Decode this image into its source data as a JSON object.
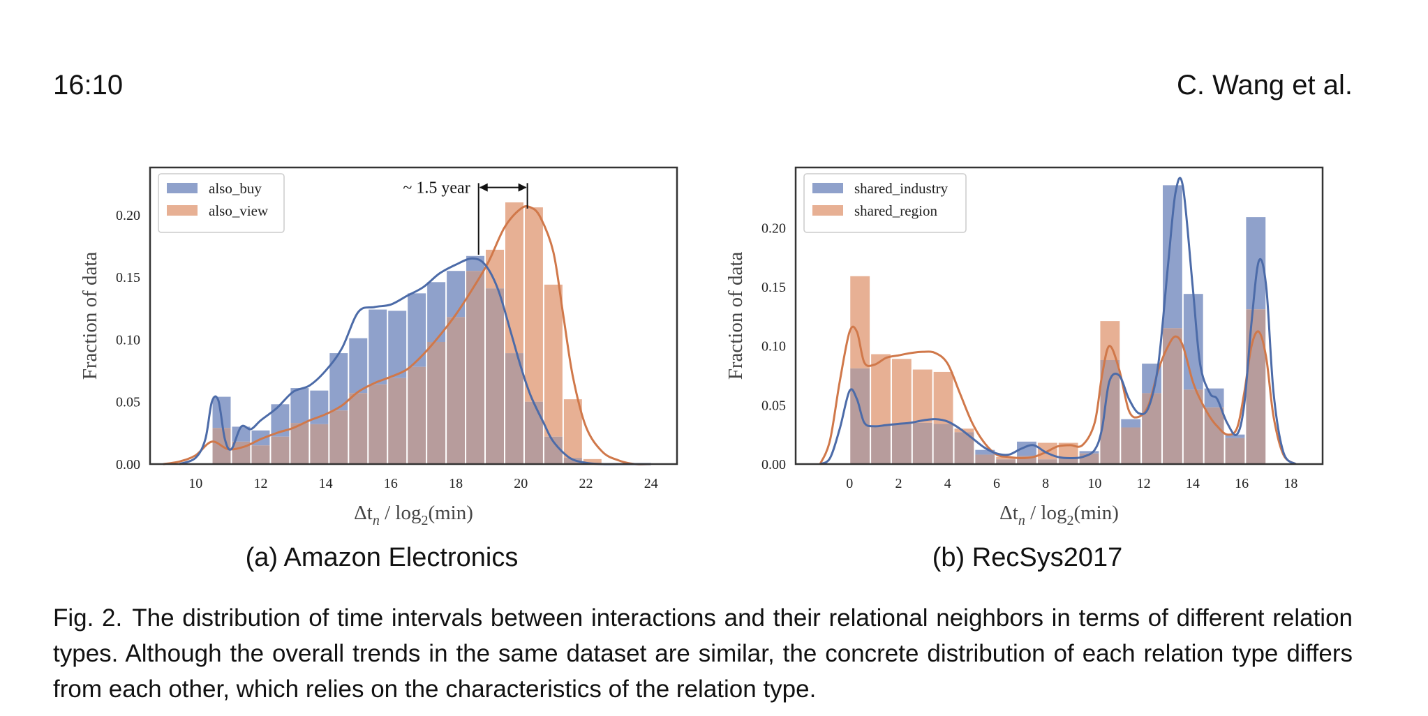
{
  "header": {
    "page_number": "16:10",
    "running_head": "C. Wang et al."
  },
  "caption": {
    "label": "Fig. 2.",
    "text": "The distribution of time intervals between interactions and their relational neighbors in terms of different relation types. Although the overall trends in the same dataset are similar, the concrete distribution of each relation type differs from each other, which relies on the characteristics of the relation type."
  },
  "colors": {
    "blue_bar": "#8fa1cb",
    "orange_bar": "#e7b094",
    "blue_line": "#4c6ba8",
    "orange_line": "#d0784a",
    "overlap": "#b79c9c"
  },
  "chart_data": [
    {
      "type": "bar",
      "subcaption": "(a) Amazon Electronics",
      "xlabel_main": "Δt",
      "xlabel_sub": "n",
      "xlabel_rest": " / log",
      "xlabel_base": "2",
      "xlabel_unit": "(min)",
      "ylabel": "Fraction of data",
      "xlim": [
        8.6,
        24.8
      ],
      "ylim": [
        0,
        0.238
      ],
      "xticks": [
        10,
        12,
        14,
        16,
        18,
        20,
        22,
        24
      ],
      "yticks": [
        "0.00",
        "0.05",
        "0.10",
        "0.15",
        "0.20"
      ],
      "bin_width": 0.6,
      "bin_starts": [
        10.5,
        11.1,
        11.7,
        12.3,
        12.9,
        13.5,
        14.1,
        14.7,
        15.3,
        15.9,
        16.5,
        17.1,
        17.7,
        18.3,
        18.9,
        19.5,
        20.1,
        20.7,
        21.3,
        21.9
      ],
      "annotation": {
        "text": "~ 1.5 year",
        "x1": 18.7,
        "x2": 20.2,
        "y": 0.222
      },
      "legend_position": "top-left",
      "series": [
        {
          "name": "also_buy",
          "values": [
            0.054,
            0.03,
            0.027,
            0.048,
            0.061,
            0.059,
            0.089,
            0.101,
            0.124,
            0.123,
            0.137,
            0.146,
            0.155,
            0.167,
            0.141,
            0.089,
            0.05,
            0.022,
            0.005,
            0.0
          ],
          "kde_x": [
            9.5,
            10.0,
            10.3,
            10.5,
            10.7,
            10.9,
            11.1,
            11.4,
            11.7,
            12.0,
            12.5,
            13.0,
            13.5,
            14.0,
            14.5,
            15.0,
            15.5,
            16.0,
            16.5,
            17.0,
            17.5,
            18.0,
            18.5,
            18.9,
            19.3,
            19.7,
            20.0,
            20.3,
            20.7,
            21.0,
            21.5,
            22.0,
            22.5,
            23.0,
            24.0
          ],
          "kde_y": [
            0.0,
            0.005,
            0.02,
            0.05,
            0.051,
            0.02,
            0.012,
            0.03,
            0.028,
            0.035,
            0.045,
            0.058,
            0.063,
            0.075,
            0.093,
            0.122,
            0.126,
            0.128,
            0.135,
            0.142,
            0.153,
            0.16,
            0.165,
            0.16,
            0.14,
            0.105,
            0.078,
            0.055,
            0.033,
            0.018,
            0.005,
            0.001,
            0.0,
            0.0,
            0.0
          ]
        },
        {
          "name": "also_view",
          "values": [
            0.029,
            0.018,
            0.015,
            0.022,
            0.033,
            0.032,
            0.043,
            0.057,
            0.064,
            0.069,
            0.078,
            0.098,
            0.118,
            0.155,
            0.172,
            0.21,
            0.206,
            0.144,
            0.052,
            0.004
          ],
          "kde_x": [
            9.0,
            9.5,
            10.0,
            10.5,
            11.0,
            11.5,
            12.0,
            12.5,
            13.0,
            13.5,
            14.0,
            14.5,
            15.0,
            15.5,
            16.0,
            16.5,
            17.0,
            17.5,
            18.0,
            18.5,
            19.0,
            19.5,
            20.0,
            20.3,
            20.6,
            21.0,
            21.3,
            21.6,
            22.0,
            22.5,
            23.0,
            23.5,
            24.0
          ],
          "kde_y": [
            0.0,
            0.002,
            0.007,
            0.018,
            0.012,
            0.014,
            0.02,
            0.025,
            0.029,
            0.035,
            0.04,
            0.047,
            0.058,
            0.065,
            0.07,
            0.076,
            0.088,
            0.103,
            0.12,
            0.14,
            0.162,
            0.19,
            0.205,
            0.206,
            0.198,
            0.17,
            0.12,
            0.07,
            0.03,
            0.01,
            0.003,
            0.0,
            0.0
          ]
        }
      ]
    },
    {
      "type": "bar",
      "subcaption": "(b) RecSys2017",
      "xlabel_main": "Δt",
      "xlabel_sub": "n",
      "xlabel_rest": " / log",
      "xlabel_base": "2",
      "xlabel_unit": "(min)",
      "ylabel": "Fraction of data",
      "xlim": [
        -2.2,
        19.3
      ],
      "ylim": [
        0,
        0.251
      ],
      "xticks": [
        0,
        2,
        4,
        6,
        8,
        10,
        12,
        14,
        16,
        18
      ],
      "yticks": [
        "0.00",
        "0.05",
        "0.10",
        "0.15",
        "0.20"
      ],
      "bin_width": 0.85,
      "bin_starts": [
        0.0,
        0.85,
        1.7,
        2.55,
        3.4,
        4.25,
        5.1,
        5.95,
        6.8,
        7.65,
        8.5,
        9.35,
        10.2,
        11.05,
        11.9,
        12.75,
        13.6,
        14.45,
        15.3,
        16.15
      ],
      "legend_position": "top-left",
      "series": [
        {
          "name": "shared_industry",
          "values": [
            0.081,
            0.033,
            0.034,
            0.035,
            0.034,
            0.027,
            0.012,
            0.004,
            0.019,
            0.004,
            0.005,
            0.011,
            0.088,
            0.038,
            0.085,
            0.236,
            0.144,
            0.064,
            0.025,
            0.209
          ],
          "kde_x": [
            -1.2,
            -0.8,
            -0.4,
            0.0,
            0.3,
            0.6,
            1.0,
            1.5,
            2.0,
            2.5,
            3.0,
            3.5,
            4.0,
            4.5,
            5.0,
            5.5,
            6.0,
            6.5,
            7.0,
            7.5,
            8.0,
            8.5,
            9.0,
            9.5,
            10.0,
            10.3,
            10.6,
            11.0,
            11.4,
            11.8,
            12.2,
            12.6,
            13.0,
            13.3,
            13.6,
            14.0,
            14.3,
            14.7,
            15.0,
            15.4,
            15.8,
            16.1,
            16.4,
            16.7,
            17.0,
            17.3,
            17.7,
            18.2
          ],
          "kde_y": [
            0.0,
            0.005,
            0.03,
            0.062,
            0.055,
            0.035,
            0.032,
            0.033,
            0.034,
            0.035,
            0.037,
            0.038,
            0.036,
            0.03,
            0.022,
            0.014,
            0.009,
            0.008,
            0.013,
            0.016,
            0.01,
            0.006,
            0.005,
            0.006,
            0.012,
            0.03,
            0.07,
            0.075,
            0.055,
            0.043,
            0.048,
            0.085,
            0.17,
            0.23,
            0.235,
            0.15,
            0.085,
            0.06,
            0.055,
            0.035,
            0.025,
            0.05,
            0.12,
            0.172,
            0.15,
            0.06,
            0.01,
            0.0
          ]
        },
        {
          "name": "shared_region",
          "values": [
            0.159,
            0.093,
            0.089,
            0.08,
            0.078,
            0.03,
            0.008,
            0.006,
            0.007,
            0.018,
            0.018,
            0.009,
            0.121,
            0.031,
            0.06,
            0.115,
            0.063,
            0.048,
            0.022,
            0.131
          ],
          "kde_x": [
            -1.2,
            -0.8,
            -0.4,
            0.0,
            0.3,
            0.6,
            1.0,
            1.5,
            2.0,
            2.5,
            3.0,
            3.5,
            4.0,
            4.5,
            5.0,
            5.5,
            6.0,
            6.5,
            7.0,
            7.5,
            8.0,
            8.5,
            9.0,
            9.5,
            10.0,
            10.3,
            10.6,
            11.0,
            11.4,
            11.8,
            12.2,
            12.6,
            13.0,
            13.3,
            13.6,
            14.0,
            14.3,
            14.7,
            15.0,
            15.4,
            15.8,
            16.1,
            16.4,
            16.7,
            17.0,
            17.3,
            17.7,
            18.2
          ],
          "kde_y": [
            0.0,
            0.02,
            0.07,
            0.112,
            0.112,
            0.086,
            0.084,
            0.09,
            0.092,
            0.094,
            0.095,
            0.094,
            0.085,
            0.06,
            0.035,
            0.018,
            0.008,
            0.006,
            0.005,
            0.006,
            0.01,
            0.015,
            0.016,
            0.016,
            0.035,
            0.075,
            0.1,
            0.08,
            0.045,
            0.04,
            0.05,
            0.08,
            0.1,
            0.108,
            0.1,
            0.07,
            0.055,
            0.04,
            0.032,
            0.025,
            0.03,
            0.06,
            0.1,
            0.112,
            0.09,
            0.04,
            0.008,
            0.0
          ]
        }
      ]
    }
  ]
}
